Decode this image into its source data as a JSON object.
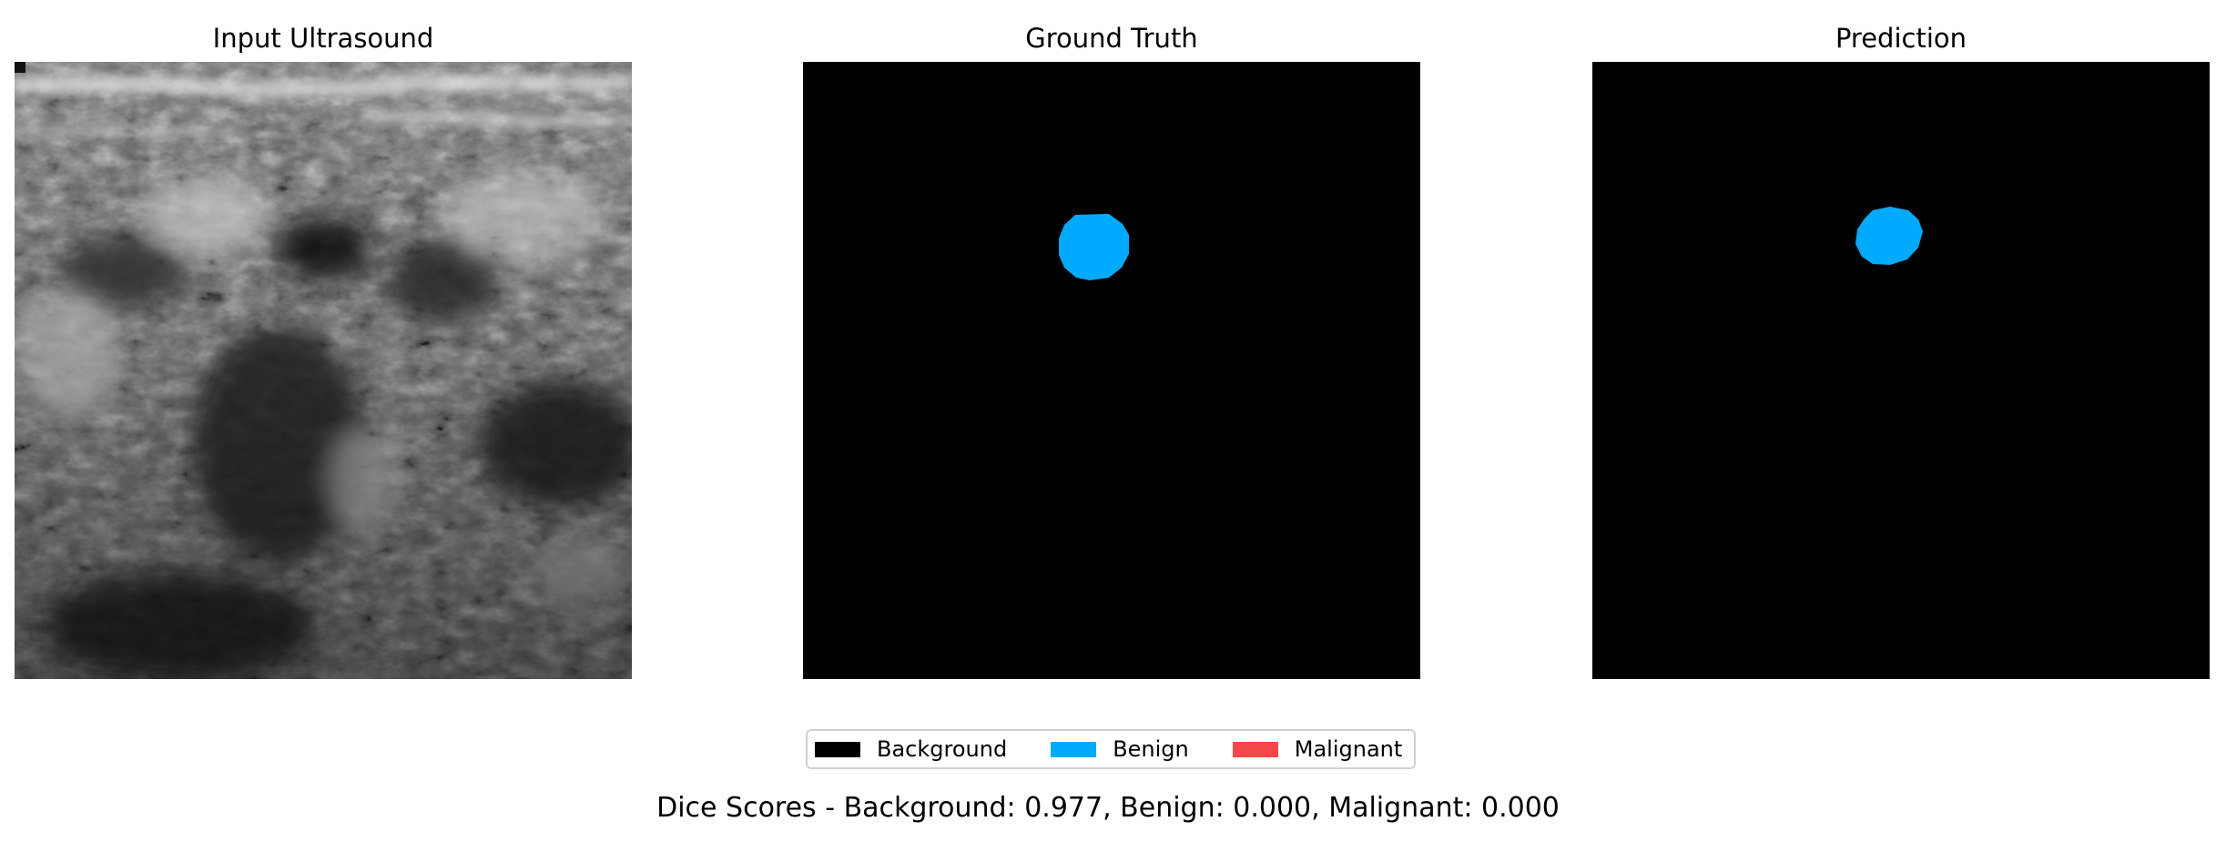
{
  "panels": [
    {
      "title": "Input Ultrasound",
      "kind": "grayscale-ultrasound-image"
    },
    {
      "title": "Ground Truth",
      "kind": "segmentation-mask"
    },
    {
      "title": "Prediction",
      "kind": "segmentation-mask"
    }
  ],
  "legend": {
    "items": [
      {
        "label": "Background",
        "color": "#000000"
      },
      {
        "label": "Benign",
        "color": "#00aaff"
      },
      {
        "label": "Malignant",
        "color": "#f44848"
      }
    ]
  },
  "dice_text": "Dice Scores - Background: 0.977, Benign: 0.000, Malignant: 0.000"
}
